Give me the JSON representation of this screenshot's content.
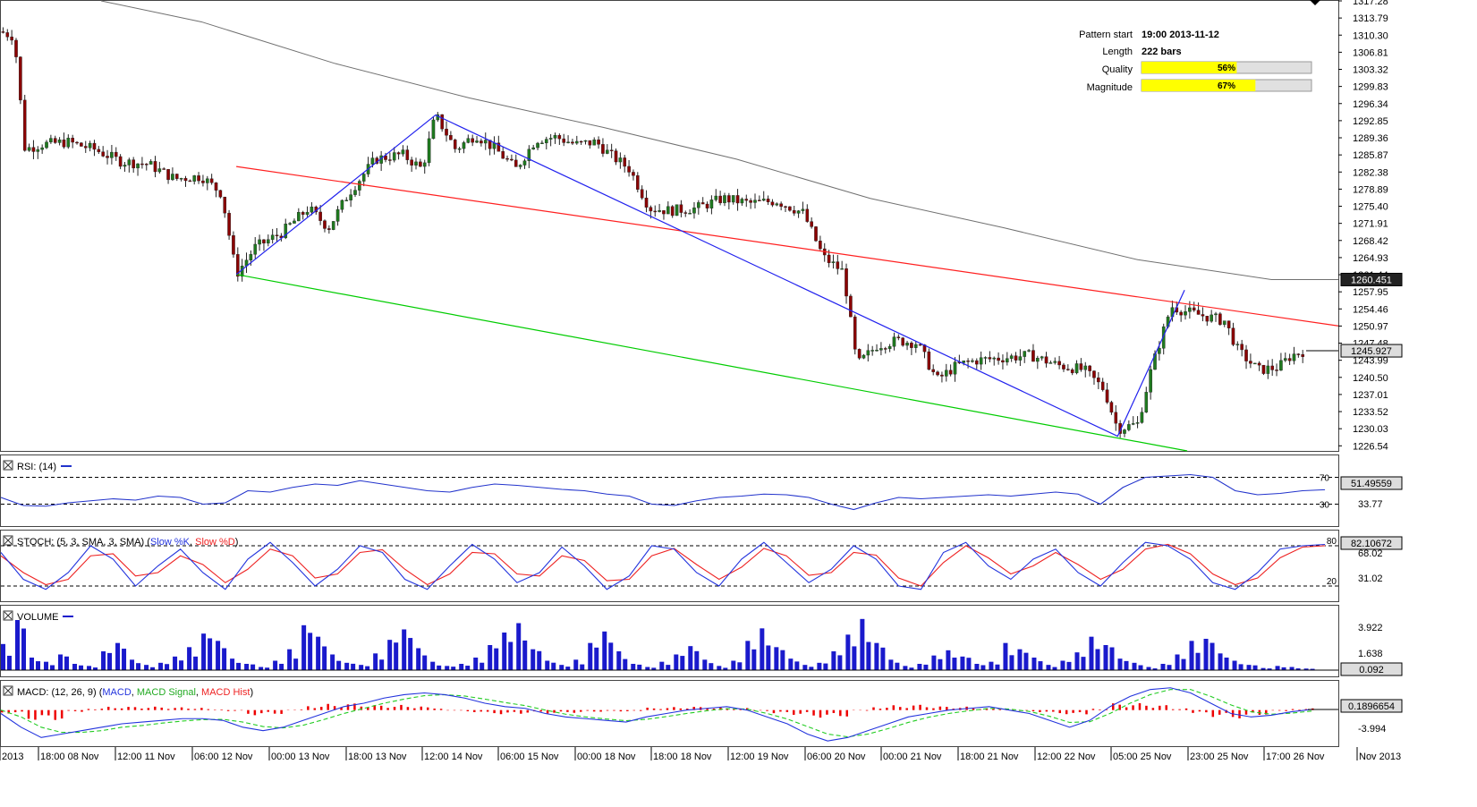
{
  "pattern_info": {
    "pattern_start_label": "Pattern start",
    "pattern_start_value": "19:00 2013-11-12",
    "length_label": "Length",
    "length_value": "222 bars",
    "quality_label": "Quality",
    "quality_value": "56%",
    "quality_fraction": 0.56,
    "magnitude_label": "Magnitude",
    "magnitude_value": "67%",
    "magnitude_fraction": 0.67
  },
  "x_axis": {
    "labels": [
      "2013",
      "18:00 08 Nov",
      "12:00 11 Nov",
      "06:00 12 Nov",
      "00:00 13 Nov",
      "18:00 13 Nov",
      "12:00 14 Nov",
      "06:00 15 Nov",
      "00:00 18 Nov",
      "18:00 18 Nov",
      "12:00 19 Nov",
      "06:00 20 Nov",
      "00:00 21 Nov",
      "18:00 21 Nov",
      "12:00 22 Nov",
      "05:00 25 Nov",
      "23:00 25 Nov",
      "17:00 26 Nov",
      "Nov 2013"
    ]
  },
  "colors": {
    "candle_up": "#1f7a1f",
    "candle_down": "#8b0000",
    "resistance": "#ff2020",
    "support": "#00cc00",
    "wave": "#2222ee",
    "ma": "#707070",
    "rsi": "#2233cc",
    "stoch_k": "#2233dd",
    "stoch_d": "#ee2222",
    "volume": "#1a1acc",
    "macd": "#2233dd",
    "macd_signal": "#22cc22",
    "macd_hist": "#ee0000",
    "gauge_fill": "#ffff00"
  },
  "chart_data": [
    {
      "type": "line",
      "panel": "price",
      "y_ticks": [
        "1317.28",
        "1313.79",
        "1310.30",
        "1306.81",
        "1303.32",
        "1299.83",
        "1296.34",
        "1292.85",
        "1289.36",
        "1285.87",
        "1282.38",
        "1278.89",
        "1275.40",
        "1271.91",
        "1268.42",
        "1264.93",
        "1261.44",
        "1257.95",
        "1254.46",
        "1250.97",
        "1247.48",
        "1243.99",
        "1240.50",
        "1237.01",
        "1233.52",
        "1230.03",
        "1226.54"
      ],
      "ylim": [
        1225.5,
        1317.28
      ],
      "badges": {
        "ma_value": "1260.451",
        "last_price": "1245.927"
      },
      "series": [
        {
          "name": "resistance",
          "points": [
            [
              0.176,
              1283.5
            ],
            [
              1.0,
              1251.0
            ]
          ]
        },
        {
          "name": "support",
          "points": [
            [
              0.176,
              1261.5
            ],
            [
              0.887,
              1225.5
            ]
          ]
        },
        {
          "name": "wave",
          "points": [
            [
              0.176,
              1261.5
            ],
            [
              0.325,
              1294.0
            ],
            [
              0.835,
              1228.5
            ],
            [
              0.885,
              1258.3
            ]
          ]
        },
        {
          "name": "moving-average",
          "points": [
            [
              0.075,
              1317.28
            ],
            [
              0.15,
              1313.0
            ],
            [
              0.25,
              1304.5
            ],
            [
              0.35,
              1297.5
            ],
            [
              0.45,
              1291.5
            ],
            [
              0.55,
              1285.0
            ],
            [
              0.65,
              1277.0
            ],
            [
              0.75,
              1271.0
            ],
            [
              0.85,
              1264.5
            ],
            [
              0.95,
              1260.451
            ],
            [
              1.0,
              1260.451
            ]
          ]
        }
      ],
      "price_path": [
        [
          0.0,
          1311.0
        ],
        [
          0.01,
          1310.0
        ],
        [
          0.018,
          1287.0
        ],
        [
          0.03,
          1288.0
        ],
        [
          0.05,
          1288.5
        ],
        [
          0.07,
          1287.0
        ],
        [
          0.09,
          1284.5
        ],
        [
          0.11,
          1284.0
        ],
        [
          0.13,
          1281.0
        ],
        [
          0.15,
          1281.5
        ],
        [
          0.165,
          1278.0
        ],
        [
          0.176,
          1261.5
        ],
        [
          0.19,
          1267.0
        ],
        [
          0.21,
          1270.0
        ],
        [
          0.23,
          1275.0
        ],
        [
          0.245,
          1271.0
        ],
        [
          0.26,
          1278.0
        ],
        [
          0.28,
          1285.0
        ],
        [
          0.3,
          1286.0
        ],
        [
          0.315,
          1283.0
        ],
        [
          0.325,
          1294.0
        ],
        [
          0.34,
          1287.0
        ],
        [
          0.355,
          1290.0
        ],
        [
          0.37,
          1287.0
        ],
        [
          0.385,
          1283.0
        ],
        [
          0.4,
          1289.0
        ],
        [
          0.415,
          1289.5
        ],
        [
          0.43,
          1288.0
        ],
        [
          0.445,
          1288.5
        ],
        [
          0.455,
          1286.0
        ],
        [
          0.47,
          1283.0
        ],
        [
          0.485,
          1275.0
        ],
        [
          0.5,
          1274.5
        ],
        [
          0.52,
          1275.0
        ],
        [
          0.54,
          1277.0
        ],
        [
          0.56,
          1276.0
        ],
        [
          0.58,
          1276.5
        ],
        [
          0.6,
          1274.0
        ],
        [
          0.615,
          1265.0
        ],
        [
          0.63,
          1262.0
        ],
        [
          0.64,
          1243.0
        ],
        [
          0.655,
          1247.0
        ],
        [
          0.67,
          1248.0
        ],
        [
          0.685,
          1247.5
        ],
        [
          0.7,
          1240.0
        ],
        [
          0.715,
          1243.0
        ],
        [
          0.73,
          1244.0
        ],
        [
          0.75,
          1244.5
        ],
        [
          0.77,
          1245.0
        ],
        [
          0.79,
          1243.0
        ],
        [
          0.81,
          1242.0
        ],
        [
          0.825,
          1238.0
        ],
        [
          0.835,
          1230.0
        ],
        [
          0.85,
          1231.0
        ],
        [
          0.86,
          1242.0
        ],
        [
          0.875,
          1255.0
        ],
        [
          0.885,
          1254.0
        ],
        [
          0.9,
          1253.0
        ],
        [
          0.915,
          1252.0
        ],
        [
          0.925,
          1246.0
        ],
        [
          0.94,
          1242.0
        ],
        [
          0.955,
          1242.5
        ],
        [
          0.965,
          1245.0
        ],
        [
          0.975,
          1245.927
        ]
      ]
    },
    {
      "type": "line",
      "panel": "rsi",
      "title": "RSI: (14)",
      "ylim": [
        0,
        100
      ],
      "levels": [
        70,
        30
      ],
      "level_labels": [
        "70",
        "30"
      ],
      "scale_label": "33.77",
      "value_badge": "51.49559",
      "values": [
        40,
        28,
        27,
        32,
        35,
        38,
        36,
        42,
        40,
        30,
        32,
        50,
        48,
        55,
        60,
        58,
        65,
        60,
        55,
        50,
        48,
        55,
        60,
        58,
        55,
        52,
        50,
        45,
        42,
        30,
        28,
        35,
        40,
        42,
        45,
        44,
        40,
        30,
        22,
        32,
        40,
        38,
        40,
        42,
        44,
        42,
        45,
        48,
        45,
        30,
        55,
        70,
        72,
        74,
        70,
        50,
        44,
        46,
        50,
        51.49559
      ]
    },
    {
      "type": "line",
      "panel": "stoch",
      "title": "STOCH: (5, 3, SMA, 3, SMA)",
      "legend": [
        "Slow %K",
        "Slow %D"
      ],
      "ylim": [
        0,
        100
      ],
      "levels": [
        80,
        20
      ],
      "level_labels": [
        "80",
        "20"
      ],
      "scale_labels": [
        "68.02",
        "31.02"
      ],
      "value_badge": "82.10672",
      "series": [
        {
          "name": "Slow %K",
          "values": [
            70,
            30,
            15,
            40,
            80,
            60,
            20,
            50,
            75,
            40,
            15,
            60,
            85,
            55,
            20,
            45,
            80,
            70,
            30,
            15,
            50,
            82,
            60,
            25,
            40,
            78,
            50,
            15,
            35,
            80,
            75,
            40,
            20,
            60,
            85,
            55,
            25,
            45,
            80,
            60,
            20,
            15,
            70,
            85,
            50,
            30,
            60,
            75,
            40,
            20,
            55,
            85,
            80,
            60,
            25,
            15,
            40,
            75,
            80,
            82
          ]
        },
        {
          "name": "Slow %D",
          "values": [
            65,
            40,
            22,
            30,
            65,
            68,
            35,
            40,
            65,
            52,
            25,
            45,
            75,
            65,
            32,
            38,
            70,
            74,
            45,
            22,
            38,
            70,
            68,
            38,
            35,
            65,
            58,
            28,
            30,
            65,
            76,
            52,
            30,
            48,
            76,
            65,
            36,
            40,
            70,
            66,
            32,
            20,
            55,
            80,
            62,
            38,
            50,
            70,
            52,
            30,
            45,
            75,
            82,
            68,
            38,
            22,
            32,
            62,
            78,
            80
          ]
        }
      ]
    },
    {
      "type": "bar",
      "panel": "volume",
      "title": "VOLUME",
      "ylim": [
        0,
        6.0
      ],
      "scale_labels": [
        "3.922",
        "1.638"
      ],
      "value_badge": "0.092",
      "values": [
        2.5,
        4.8,
        1.2,
        0.8,
        1.5,
        0.6,
        0.4,
        1.8,
        2.6,
        1.0,
        0.5,
        0.7,
        1.3,
        2.2,
        3.5,
        2.8,
        1.1,
        0.6,
        0.3,
        0.9,
        2.0,
        4.3,
        3.2,
        1.5,
        0.7,
        0.5,
        1.6,
        2.9,
        3.9,
        2.1,
        0.8,
        0.4,
        0.6,
        1.2,
        2.4,
        3.6,
        4.5,
        2.0,
        0.9,
        0.5,
        1.0,
        2.6,
        3.7,
        1.8,
        0.6,
        0.3,
        0.8,
        1.5,
        2.3,
        1.0,
        0.4,
        0.9,
        2.8,
        4.0,
        2.2,
        1.1,
        0.5,
        0.7,
        1.8,
        3.4,
        4.9,
        2.6,
        1.0,
        0.4,
        0.6,
        1.4,
        1.9,
        1.3,
        0.6,
        0.8,
        2.6,
        2.0,
        1.2,
        0.5,
        0.9,
        1.7,
        3.2,
        2.4,
        1.1,
        0.7,
        0.3,
        0.6,
        1.5,
        2.8,
        3.0,
        1.6,
        0.9,
        0.5,
        0.2,
        0.4,
        0.3,
        0.15
      ]
    },
    {
      "type": "bar",
      "panel": "macd",
      "title": "MACD: (12, 26, 9)",
      "legend": [
        "MACD",
        "MACD Signal",
        "MACD Hist"
      ],
      "ylim": [
        -10,
        8
      ],
      "scale_label": "-3.994",
      "value_badge": "0.1896654",
      "series": [
        {
          "name": "MACD",
          "values": [
            -1,
            -5,
            -8,
            -7,
            -6,
            -5,
            -4,
            -3.5,
            -3,
            -2.5,
            -2.5,
            -3,
            -5,
            -6,
            -5,
            -3,
            -1,
            1,
            2,
            3.5,
            4.5,
            5,
            4.5,
            3.5,
            2,
            1,
            0.5,
            -1,
            -2,
            -2.5,
            -3,
            -3.5,
            -2,
            -1,
            0,
            0.5,
            1,
            0,
            -2,
            -4,
            -7,
            -9,
            -8,
            -6,
            -4,
            -2,
            -1,
            0,
            0.5,
            1,
            0,
            -1,
            -3,
            -5,
            -3,
            1,
            4,
            6,
            6.5,
            5,
            2,
            -1,
            -2,
            -1.5,
            -0.5,
            0.19
          ]
        },
        {
          "name": "MACD Signal",
          "values": [
            0,
            -2,
            -5,
            -6.5,
            -6.5,
            -6,
            -5,
            -4.5,
            -3.8,
            -3.2,
            -2.8,
            -2.7,
            -3.5,
            -4.8,
            -5.2,
            -4.4,
            -2.8,
            -1,
            0.5,
            2,
            3.2,
            4.2,
            4.5,
            4.1,
            3.2,
            2.2,
            1.3,
            0,
            -1.2,
            -2,
            -2.6,
            -3.1,
            -2.7,
            -1.9,
            -1,
            -0.2,
            0.4,
            0.3,
            -1,
            -2.6,
            -4.8,
            -7,
            -7.8,
            -7,
            -5.4,
            -3.6,
            -2.1,
            -1,
            -0.2,
            0.5,
            0.3,
            -0.4,
            -1.8,
            -3.6,
            -3.4,
            -1,
            2,
            4.5,
            6,
            6,
            4,
            1.5,
            -0.5,
            -1.2,
            -0.9,
            -0.3
          ]
        },
        {
          "name": "MACD Hist",
          "values": [
            -1,
            -3,
            -3,
            -0.5,
            0.5,
            1,
            1,
            1,
            0.8,
            0.7,
            0.3,
            -0.3,
            -1.5,
            -1.2,
            0.2,
            1.4,
            1.8,
            2,
            1.5,
            1.5,
            1.3,
            0.8,
            0,
            -0.6,
            -1.2,
            -1.2,
            -0.8,
            -1,
            -0.8,
            -0.5,
            -0.4,
            -0.4,
            0.7,
            0.9,
            1,
            0.7,
            0.6,
            -0.3,
            -1,
            -1.4,
            -2.2,
            -2,
            -0.2,
            1,
            1.4,
            1.6,
            1.1,
            1,
            0.7,
            0.5,
            -0.3,
            -0.6,
            -1.2,
            -1.4,
            0.4,
            2,
            2,
            1.5,
            0.5,
            -1,
            -2,
            -2.5,
            -1.5,
            -0.3,
            0.4,
            0.5
          ]
        }
      ]
    }
  ]
}
